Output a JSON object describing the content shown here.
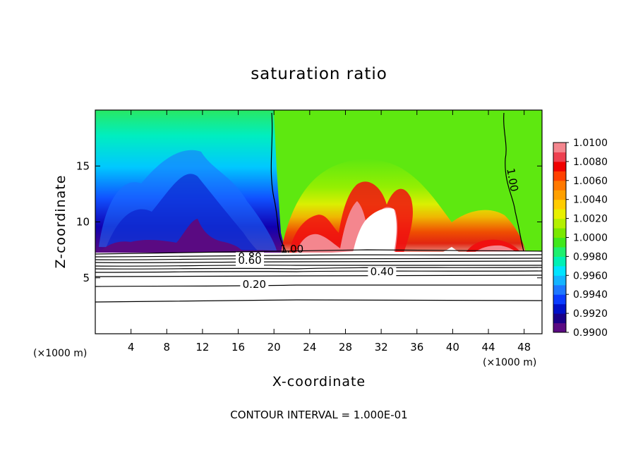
{
  "chart_data": {
    "type": "heatmap",
    "title": "saturation ratio",
    "xlabel": "X-coordinate",
    "ylabel": "Z-coordinate",
    "x_unit": "(×1000 m)",
    "z_unit": "(×1000 m)",
    "xlim": [
      0,
      50
    ],
    "ylim": [
      0,
      20
    ],
    "x_ticks": [
      4,
      8,
      12,
      16,
      20,
      24,
      28,
      32,
      36,
      40,
      44,
      48
    ],
    "y_ticks": [
      5,
      10,
      15
    ],
    "footer": "CONTOUR INTERVAL = 1.000E-01",
    "colorbar": {
      "min": 0.99,
      "max": 1.01,
      "step": 0.001,
      "tick_labels": [
        "0.9900",
        "0.9920",
        "0.9940",
        "0.9960",
        "0.9980",
        "1.0000",
        "1.0020",
        "1.0040",
        "1.0060",
        "1.0080",
        "1.0100"
      ],
      "colors": [
        "#5a0a82",
        "#1a0088",
        "#0010c8",
        "#0a3cff",
        "#1e78ff",
        "#14b4ff",
        "#00e4ff",
        "#00f0b4",
        "#1ef06e",
        "#40e81c",
        "#7ae800",
        "#b4f000",
        "#e8f000",
        "#ffcc00",
        "#ffa000",
        "#ff7800",
        "#ff4000",
        "#f00000",
        "#ee4050",
        "#f4868e"
      ]
    },
    "contour_labels": [
      {
        "text": "1.00",
        "x": 22.0,
        "z": 7.25
      },
      {
        "text": "1.00",
        "x": 46.3,
        "z": 13.7
      },
      {
        "text": "0.80",
        "x": 17.3,
        "z": 6.6
      },
      {
        "text": "0.60",
        "x": 17.3,
        "z": 6.25
      },
      {
        "text": "0.40",
        "x": 32.1,
        "z": 5.25
      },
      {
        "text": "0.20",
        "x": 17.8,
        "z": 4.1
      }
    ]
  }
}
